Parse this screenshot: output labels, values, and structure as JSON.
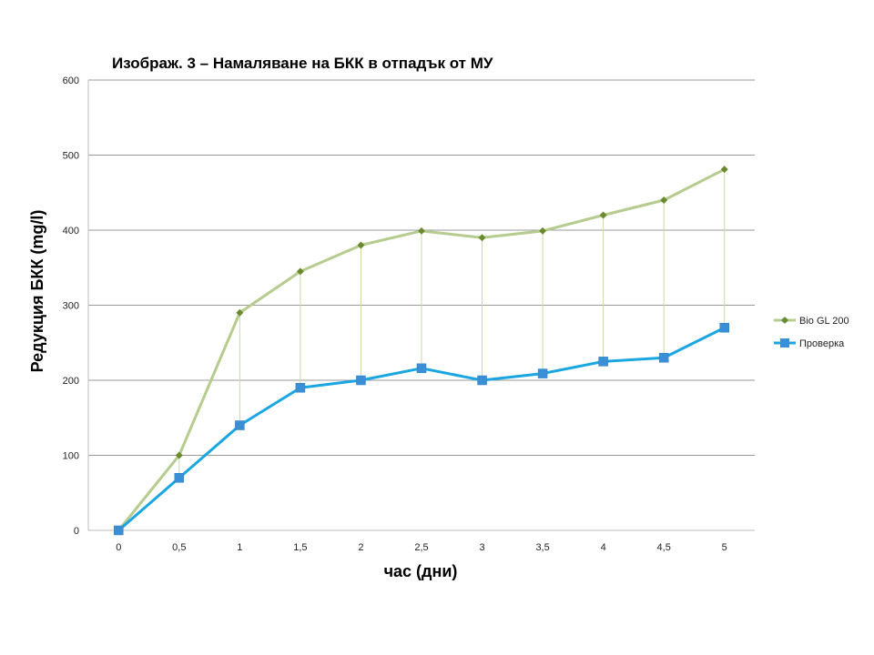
{
  "chart_data": {
    "type": "line",
    "title": "Изображ.  3 – Намаляване  на БКК в отпадък от МУ",
    "xlabel": "час (дни)",
    "ylabel": "Редукция БКК (mg/l)",
    "categories": [
      "0",
      "0,5",
      "1",
      "1,5",
      "2",
      "2,5",
      "3",
      "3,5",
      "4",
      "4,5",
      "5"
    ],
    "ylim": [
      0,
      600
    ],
    "yticks": [
      "0",
      "100",
      "200",
      "300",
      "400",
      "500",
      "600"
    ],
    "grid": true,
    "drop_lines": true,
    "legend_position": "right",
    "series": [
      {
        "name": "Bio GL 200",
        "color": "#b5cc8e",
        "marker_color": "#6a8a2e",
        "marker": "diamond",
        "values": [
          0,
          100,
          290,
          345,
          380,
          399,
          390,
          399,
          420,
          440,
          481
        ]
      },
      {
        "name": "Проверка",
        "color": "#1aa6e0",
        "marker_color": "#3a8fd6",
        "marker": "square",
        "values": [
          0,
          70,
          140,
          190,
          200,
          216,
          200,
          209,
          225,
          230,
          270
        ]
      }
    ]
  }
}
